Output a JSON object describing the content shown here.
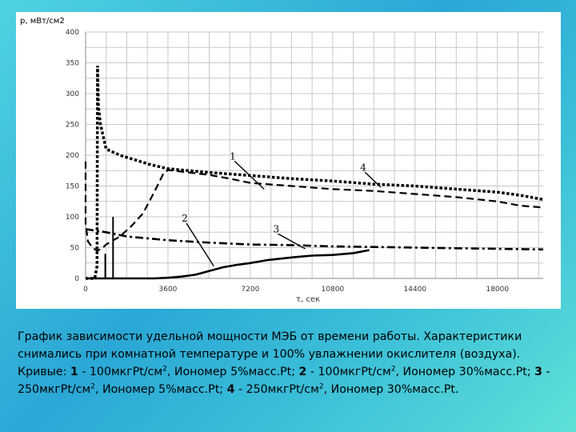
{
  "chart_data": {
    "type": "line",
    "title": "",
    "xlabel": "τ, сек",
    "ylabel": "p, мВт/см2",
    "xlim": [
      0,
      20000
    ],
    "ylim": [
      0,
      400
    ],
    "xticks": [
      0,
      3600,
      7200,
      10800,
      14400,
      18000
    ],
    "yticks": [
      0,
      50,
      100,
      150,
      200,
      250,
      300,
      350,
      400
    ],
    "grid": true,
    "series": [
      {
        "name": "1",
        "style": "dashed",
        "x": [
          0,
          0,
          100,
          300,
          500,
          700,
          900,
          1500,
          2000,
          2500,
          3000,
          3400,
          3600,
          4500,
          5400,
          6300,
          7200,
          9000,
          10800,
          12600,
          14400,
          16200,
          18000,
          19000,
          20000
        ],
        "y": [
          190,
          90,
          60,
          50,
          45,
          48,
          55,
          68,
          85,
          105,
          140,
          170,
          176,
          172,
          168,
          162,
          155,
          150,
          145,
          142,
          137,
          132,
          125,
          118,
          115
        ]
      },
      {
        "name": "2",
        "style": "solid",
        "x": [
          0,
          3000,
          3600,
          4200,
          4800,
          5400,
          6000,
          6600,
          7200,
          8000,
          9000,
          9900,
          10800,
          11700,
          12400
        ],
        "y": [
          0,
          0,
          1,
          3,
          6,
          12,
          18,
          22,
          25,
          30,
          34,
          37,
          38,
          41,
          46
        ]
      },
      {
        "name": "3",
        "style": "dashdot",
        "x": [
          0,
          900,
          1800,
          2700,
          3600,
          5400,
          7200,
          9000,
          10800,
          12600,
          14400,
          16200,
          18000,
          20000
        ],
        "y": [
          80,
          75,
          68,
          65,
          62,
          58,
          55,
          54,
          52,
          51,
          50,
          49,
          48,
          47
        ]
      },
      {
        "name": "4",
        "style": "dotted",
        "x": [
          0,
          400,
          500,
          520,
          560,
          650,
          900,
          1500,
          2200,
          2800,
          3600,
          4500,
          5400,
          7200,
          9000,
          10800,
          12600,
          14400,
          16200,
          18000,
          19000,
          20000
        ],
        "y": [
          0,
          0,
          20,
          345,
          280,
          250,
          210,
          200,
          192,
          185,
          178,
          175,
          172,
          167,
          162,
          158,
          153,
          150,
          145,
          140,
          135,
          128
        ]
      }
    ],
    "spikes": [
      {
        "x": 860,
        "y": [
          0,
          40
        ]
      },
      {
        "x": 1200,
        "y": [
          0,
          100
        ]
      }
    ],
    "annotations": [
      "1",
      "2",
      "3",
      "4"
    ]
  },
  "caption": {
    "text1": "График зависимости удельной мощности МЭБ от времени работы. Характеристики снимались при комнатной температуре и 100% увлажнении окислителя (воздуха). Кривые: ",
    "n1": "1",
    "c1": " - 100мкгPt/см",
    "c1b": ", Иономер 5%масс.Pt; ",
    "n2": "2",
    "c2": " - 100мкгPt/см",
    "c2b": ", Иономер 30%масс.Pt; ",
    "n3": "3",
    "c3": " - 250мкгPt/см",
    "c3b": ", Иономер 5%масс.Pt; ",
    "n4": "4",
    "c4": " - 250мкгPt/см",
    "c4b": ", Иономер 30%масс.Pt.",
    "sup": "2"
  }
}
